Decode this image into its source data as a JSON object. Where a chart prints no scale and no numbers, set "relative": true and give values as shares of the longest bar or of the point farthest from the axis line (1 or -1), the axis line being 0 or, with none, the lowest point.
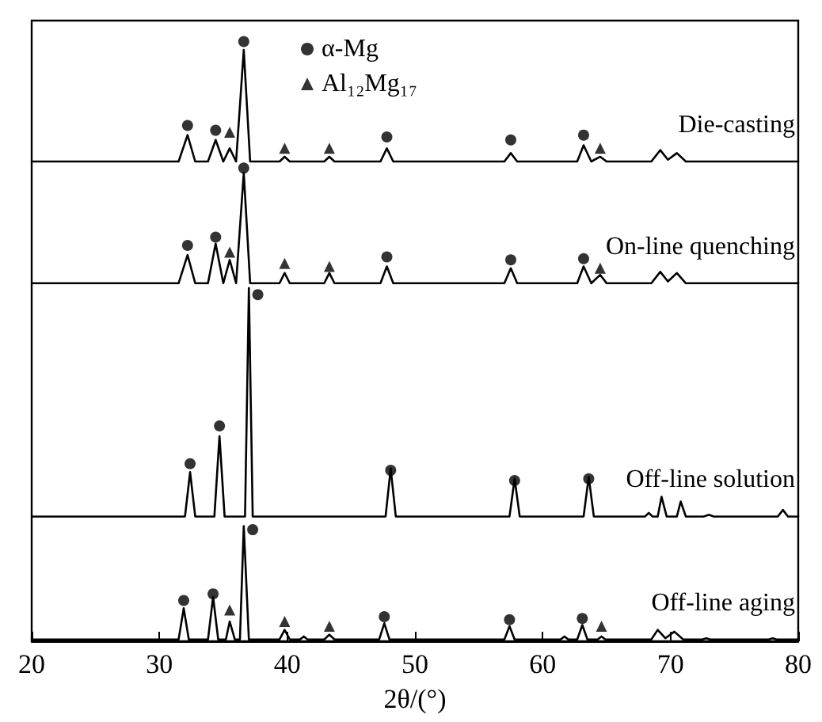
{
  "chart_data": {
    "type": "line",
    "relative": true,
    "xlabel": "2θ/(°)",
    "xlim": [
      20,
      80
    ],
    "xticks": [
      20,
      30,
      40,
      50,
      60,
      70,
      80
    ],
    "grid": false,
    "legend": "top",
    "marker": "none",
    "line_style": "solid",
    "tick_labels": "x",
    "series": [
      {
        "name": "Die-casting",
        "color": "#000000",
        "x": [
          20,
          31.5,
          32.2,
          32.8,
          33.8,
          34.4,
          35.0,
          35.5,
          36.0,
          36.6,
          37.1,
          39.4,
          39.8,
          40.2,
          42.9,
          43.3,
          43.7,
          47.3,
          47.8,
          48.3,
          57.0,
          57.5,
          58.0,
          62.7,
          63.2,
          63.8,
          64.5,
          65.0,
          68.5,
          69.2,
          69.8,
          70.5,
          71.2,
          80
        ],
        "values": [
          0.8,
          0.8,
          0.844,
          0.8,
          0.8,
          0.836,
          0.8,
          0.822,
          0.8,
          0.986,
          0.8,
          0.8,
          0.808,
          0.8,
          0.8,
          0.808,
          0.8,
          0.8,
          0.822,
          0.8,
          0.8,
          0.814,
          0.8,
          0.8,
          0.827,
          0.8,
          0.808,
          0.8,
          0.8,
          0.819,
          0.803,
          0.814,
          0.8,
          0.8
        ]
      },
      {
        "name": "On-line quenching",
        "color": "#000000",
        "x": [
          20,
          31.5,
          32.2,
          32.8,
          33.8,
          34.4,
          35.0,
          35.5,
          36.0,
          36.6,
          37.1,
          39.4,
          39.8,
          40.2,
          42.9,
          43.3,
          43.7,
          47.3,
          47.8,
          48.3,
          57.0,
          57.5,
          58.0,
          62.7,
          63.2,
          63.8,
          64.5,
          65.0,
          68.5,
          69.2,
          69.8,
          70.5,
          71.2,
          80
        ],
        "values": [
          0.597,
          0.597,
          0.644,
          0.597,
          0.597,
          0.663,
          0.597,
          0.636,
          0.597,
          0.781,
          0.597,
          0.597,
          0.614,
          0.597,
          0.597,
          0.614,
          0.597,
          0.597,
          0.625,
          0.597,
          0.597,
          0.622,
          0.597,
          0.597,
          0.625,
          0.597,
          0.611,
          0.597,
          0.597,
          0.616,
          0.6,
          0.614,
          0.597,
          0.597
        ]
      },
      {
        "name": "Off-line solution",
        "color": "#000000",
        "x": [
          20,
          32.0,
          32.4,
          32.8,
          34.3,
          34.7,
          35.1,
          36.7,
          37.0,
          37.3,
          47.7,
          48.1,
          48.5,
          57.4,
          57.8,
          58.2,
          63.2,
          63.6,
          64.0,
          68.0,
          68.3,
          68.6,
          69.0,
          69.3,
          69.7,
          70.5,
          70.8,
          71.2,
          72.6,
          73.0,
          73.4,
          78.4,
          78.8,
          79.2,
          80
        ],
        "values": [
          0.208,
          0.208,
          0.282,
          0.208,
          0.208,
          0.342,
          0.208,
          0.208,
          0.589,
          0.208,
          0.208,
          0.288,
          0.208,
          0.208,
          0.271,
          0.208,
          0.208,
          0.274,
          0.208,
          0.208,
          0.214,
          0.208,
          0.208,
          0.241,
          0.208,
          0.208,
          0.233,
          0.208,
          0.208,
          0.211,
          0.208,
          0.208,
          0.219,
          0.208,
          0.208
        ]
      },
      {
        "name": "Off-line aging",
        "color": "#000000",
        "x": [
          20,
          31.5,
          31.9,
          32.3,
          33.8,
          34.2,
          34.6,
          35.2,
          35.5,
          35.9,
          36.3,
          36.6,
          37.0,
          39.4,
          39.8,
          40.2,
          41.0,
          41.3,
          41.6,
          42.9,
          43.3,
          43.7,
          47.2,
          47.6,
          48.0,
          57.0,
          57.4,
          57.8,
          61.4,
          61.7,
          62.0,
          62.7,
          63.1,
          63.5,
          64.3,
          64.6,
          64.9,
          68.5,
          69.0,
          69.6,
          70.3,
          71.0,
          72.5,
          72.8,
          73.1,
          77.7,
          78.0,
          78.3,
          80
        ],
        "values": [
          0.003,
          0.003,
          0.055,
          0.003,
          0.003,
          0.074,
          0.003,
          0.003,
          0.033,
          0.003,
          0.003,
          0.192,
          0.003,
          0.003,
          0.019,
          0.003,
          0.003,
          0.008,
          0.003,
          0.003,
          0.011,
          0.003,
          0.003,
          0.03,
          0.003,
          0.003,
          0.025,
          0.003,
          0.003,
          0.008,
          0.003,
          0.003,
          0.027,
          0.003,
          0.003,
          0.008,
          0.003,
          0.003,
          0.019,
          0.005,
          0.016,
          0.003,
          0.003,
          0.005,
          0.003,
          0.003,
          0.005,
          0.003,
          0.003
        ]
      },
      {
        "name": "α-Mg",
        "type": "scatter",
        "marker": "circle",
        "color": "#000000",
        "x": [
          32.2,
          34.4,
          36.6,
          47.8,
          57.5,
          63.2,
          32.2,
          34.4,
          36.6,
          47.8,
          57.5,
          63.2,
          37.7,
          34.7,
          32.4,
          48.1,
          57.8,
          63.6,
          37.3,
          31.9,
          34.2,
          47.6,
          57.4,
          63.1
        ],
        "values": [
          0.86,
          0.852,
          1.0,
          0.841,
          0.836,
          0.844,
          0.66,
          0.674,
          0.789,
          0.641,
          0.636,
          0.638,
          0.578,
          0.359,
          0.296,
          0.285,
          0.268,
          0.271,
          0.186,
          0.068,
          0.079,
          0.041,
          0.036,
          0.038
        ]
      },
      {
        "name": "Al₁₂Mg₁₇",
        "type": "scatter",
        "marker": "triangle",
        "color": "#000000",
        "x": [
          35.5,
          39.8,
          43.3,
          64.5,
          35.5,
          39.8,
          43.3,
          64.5,
          35.5,
          39.8,
          43.3,
          64.6
        ],
        "values": [
          0.849,
          0.822,
          0.822,
          0.822,
          0.649,
          0.63,
          0.625,
          0.622,
          0.052,
          0.033,
          0.025,
          0.025
        ]
      }
    ]
  }
}
